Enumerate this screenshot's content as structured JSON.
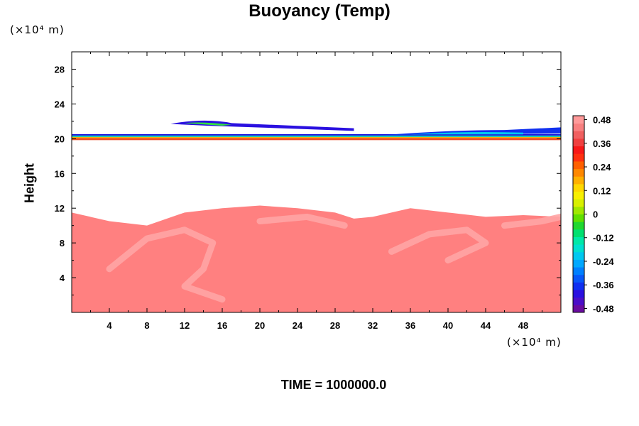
{
  "chart_data": {
    "type": "heatmap",
    "title": "Buoyancy (Temp)",
    "ylabel": "Height",
    "xlabel": "",
    "y_unit": "(×10⁴ m)",
    "x_unit": "(×10⁴ m)",
    "footer": "TIME = 1000000.0",
    "xlim": [
      0,
      52
    ],
    "ylim": [
      0,
      30
    ],
    "x_ticks": [
      "4",
      "8",
      "12",
      "16",
      "20",
      "24",
      "28",
      "32",
      "36",
      "40",
      "44",
      "48"
    ],
    "y_ticks": [
      "4",
      "8",
      "12",
      "16",
      "20",
      "24",
      "28"
    ],
    "colorbar": {
      "range": [
        -0.5,
        0.5
      ],
      "labels": [
        "0.48",
        "0.36",
        "0.24",
        "0.12",
        "0",
        "-0.12",
        "-0.24",
        "-0.36",
        "-0.48"
      ],
      "colors": [
        "#6a0ca0",
        "#4b0ec8",
        "#2a10e0",
        "#1030f0",
        "#0858f8",
        "#0080ff",
        "#00a8ff",
        "#00c8f0",
        "#00e0d0",
        "#00e8a8",
        "#00e070",
        "#20d830",
        "#60e000",
        "#a0e800",
        "#d8f000",
        "#f8f000",
        "#ffd800",
        "#ffb000",
        "#ff8800",
        "#ff6000",
        "#ff3010",
        "#f81818",
        "#f04040",
        "#f06060",
        "#f88080",
        "#ff9a9a"
      ]
    },
    "regions": {
      "lower_warm_layer_top_height": [
        11.5,
        10.5,
        10.0,
        11.5,
        12.0,
        12.3,
        12.0,
        11.5,
        10.8,
        11.0,
        12.0,
        11.5,
        11.0,
        11.2,
        11.0
      ],
      "lower_warm_layer_top_x": [
        0,
        4,
        8,
        12,
        16,
        20,
        24,
        28,
        30,
        32,
        36,
        40,
        44,
        48,
        52
      ],
      "lower_warm_value": 0.45,
      "inversion_layer_height": 20,
      "upper_cold_band_height": [
        20.2,
        21.5
      ],
      "upper_cold_value": -0.3
    }
  }
}
